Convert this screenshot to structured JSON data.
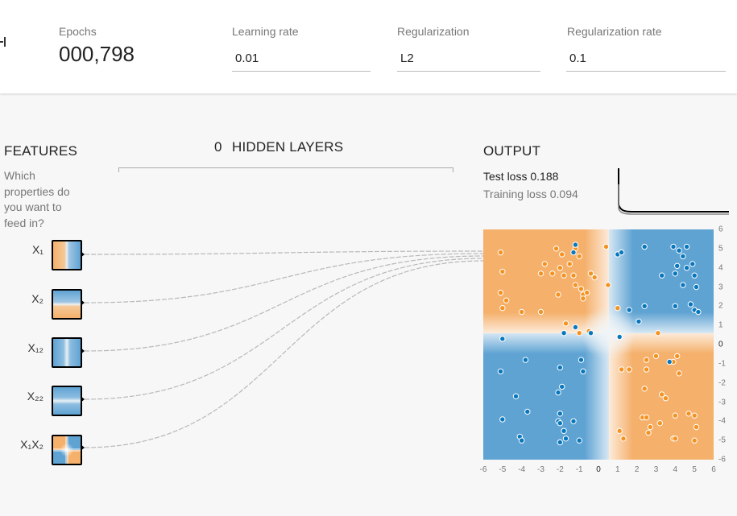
{
  "controls": {
    "epochs_label": "Epochs",
    "epochs_value": "000,798",
    "learning_rate_label": "Learning rate",
    "learning_rate_value": "0.01",
    "regularization_label": "Regularization",
    "regularization_value": "L2",
    "regularization_rate_label": "Regularization rate",
    "regularization_rate_value": "0.1"
  },
  "features": {
    "title": "FEATURES",
    "description": "Which properties do you want to feed in?",
    "items": [
      {
        "label": "X₁",
        "id": "x1"
      },
      {
        "label": "X₂",
        "id": "x2"
      },
      {
        "label": "X₁₂",
        "id": "x1sq"
      },
      {
        "label": "X₂₂",
        "id": "x2sq"
      },
      {
        "label": "X₁X₂",
        "id": "x1x2"
      }
    ]
  },
  "hidden_layers": {
    "count": "0",
    "title": "HIDDEN LAYERS"
  },
  "output": {
    "title": "OUTPUT",
    "test_loss_label": "Test loss",
    "test_loss_value": "0.188",
    "training_loss_label": "Training loss",
    "training_loss_value": "0.094"
  },
  "colors": {
    "positive": "#f59322",
    "negative": "#0877bd",
    "heat_orange": "#f5b06b",
    "heat_blue": "#5fa3d3"
  },
  "chart_data": {
    "type": "scatter",
    "x_ticks": [
      "-6",
      "-5",
      "-4",
      "-3",
      "-2",
      "-1",
      "0",
      "1",
      "2",
      "3",
      "4",
      "5",
      "6"
    ],
    "y_ticks": [
      "6",
      "5",
      "4",
      "3",
      "2",
      "1",
      "0",
      "-1",
      "-2",
      "-3",
      "-4",
      "-5",
      "-6"
    ],
    "xlim": [
      -6,
      6
    ],
    "ylim": [
      -6,
      6
    ],
    "points_orange": [
      [
        -5.1,
        4.8
      ],
      [
        -2.2,
        5.0
      ],
      [
        -1.9,
        4.7
      ],
      [
        -1.2,
        5.0
      ],
      [
        -1.0,
        4.6
      ],
      [
        0.4,
        5.1
      ],
      [
        -2.8,
        4.2
      ],
      [
        -2.0,
        4.0
      ],
      [
        -1.5,
        4.2
      ],
      [
        -3.0,
        3.7
      ],
      [
        -2.4,
        3.7
      ],
      [
        -1.8,
        3.6
      ],
      [
        -1.3,
        3.6
      ],
      [
        -0.4,
        3.7
      ],
      [
        -0.2,
        3.5
      ],
      [
        -5.0,
        3.8
      ],
      [
        -1.2,
        3.1
      ],
      [
        -0.9,
        2.9
      ],
      [
        -0.8,
        2.6
      ],
      [
        -0.8,
        2.4
      ],
      [
        -2.1,
        2.6
      ],
      [
        -5.1,
        2.7
      ],
      [
        -4.8,
        2.3
      ],
      [
        -4.0,
        1.7
      ],
      [
        -5.0,
        1.9
      ],
      [
        -0.6,
        2.7
      ],
      [
        0.5,
        3.1
      ],
      [
        -1.0,
        0.6
      ],
      [
        -1.7,
        1.1
      ],
      [
        1.0,
        1.9
      ],
      [
        -3.0,
        1.7
      ],
      [
        3.1,
        0.6
      ],
      [
        -0.5,
        0.7
      ],
      [
        1.2,
        -1.3
      ],
      [
        1.6,
        -1.3
      ],
      [
        2.5,
        -0.8
      ],
      [
        2.5,
        -1.3
      ],
      [
        3.0,
        -0.6
      ],
      [
        4.1,
        -0.6
      ],
      [
        3.9,
        -0.9
      ],
      [
        4.2,
        -1.5
      ],
      [
        2.4,
        -2.3
      ],
      [
        3.3,
        -2.6
      ],
      [
        3.5,
        -2.8
      ],
      [
        4.0,
        -3.7
      ],
      [
        4.7,
        -3.6
      ],
      [
        5.0,
        -3.7
      ],
      [
        2.3,
        -3.8
      ],
      [
        2.5,
        -3.8
      ],
      [
        3.2,
        -4.1
      ],
      [
        2.7,
        -4.3
      ],
      [
        5.1,
        -4.3
      ],
      [
        1.1,
        -4.5
      ],
      [
        1.3,
        -4.9
      ],
      [
        2.6,
        -4.6
      ],
      [
        3.9,
        -4.9
      ],
      [
        4.0,
        -4.9
      ],
      [
        5.0,
        -5.0
      ]
    ],
    "points_blue": [
      [
        -1.2,
        5.2
      ],
      [
        -1.3,
        4.8
      ],
      [
        1.0,
        4.7
      ],
      [
        1.2,
        4.8
      ],
      [
        2.4,
        5.1
      ],
      [
        3.9,
        5.1
      ],
      [
        4.2,
        4.9
      ],
      [
        4.6,
        5.1
      ],
      [
        4.4,
        4.6
      ],
      [
        4.1,
        4.1
      ],
      [
        4.6,
        4.0
      ],
      [
        4.9,
        4.2
      ],
      [
        3.3,
        3.6
      ],
      [
        4.0,
        3.7
      ],
      [
        5.0,
        3.6
      ],
      [
        4.4,
        3.1
      ],
      [
        5.1,
        3.0
      ],
      [
        2.4,
        2.0
      ],
      [
        4.0,
        2.0
      ],
      [
        1.6,
        1.8
      ],
      [
        4.8,
        2.1
      ],
      [
        5.0,
        1.8
      ],
      [
        5.2,
        1.7
      ],
      [
        2.1,
        1.2
      ],
      [
        -1.2,
        0.9
      ],
      [
        -1.8,
        0.6
      ],
      [
        -0.4,
        0.6
      ],
      [
        1.1,
        0.4
      ],
      [
        -5.0,
        0.3
      ],
      [
        -3.8,
        -0.8
      ],
      [
        -0.9,
        -0.8
      ],
      [
        3.7,
        -0.9
      ],
      [
        -2.0,
        -1.2
      ],
      [
        -0.8,
        -1.4
      ],
      [
        -5.1,
        -1.4
      ],
      [
        -1.9,
        -2.2
      ],
      [
        -2.1,
        -2.5
      ],
      [
        -4.3,
        -2.7
      ],
      [
        -3.7,
        -3.5
      ],
      [
        -2.0,
        -3.6
      ],
      [
        -5.0,
        -3.9
      ],
      [
        -1.3,
        -4.0
      ],
      [
        -2.1,
        -4.0
      ],
      [
        -2.0,
        -4.1
      ],
      [
        -1.8,
        -4.5
      ],
      [
        -4.1,
        -4.8
      ],
      [
        -4.0,
        -5.0
      ],
      [
        -1.7,
        -4.9
      ],
      [
        -1.0,
        -5.0
      ],
      [
        -2.0,
        -5.1
      ]
    ]
  }
}
